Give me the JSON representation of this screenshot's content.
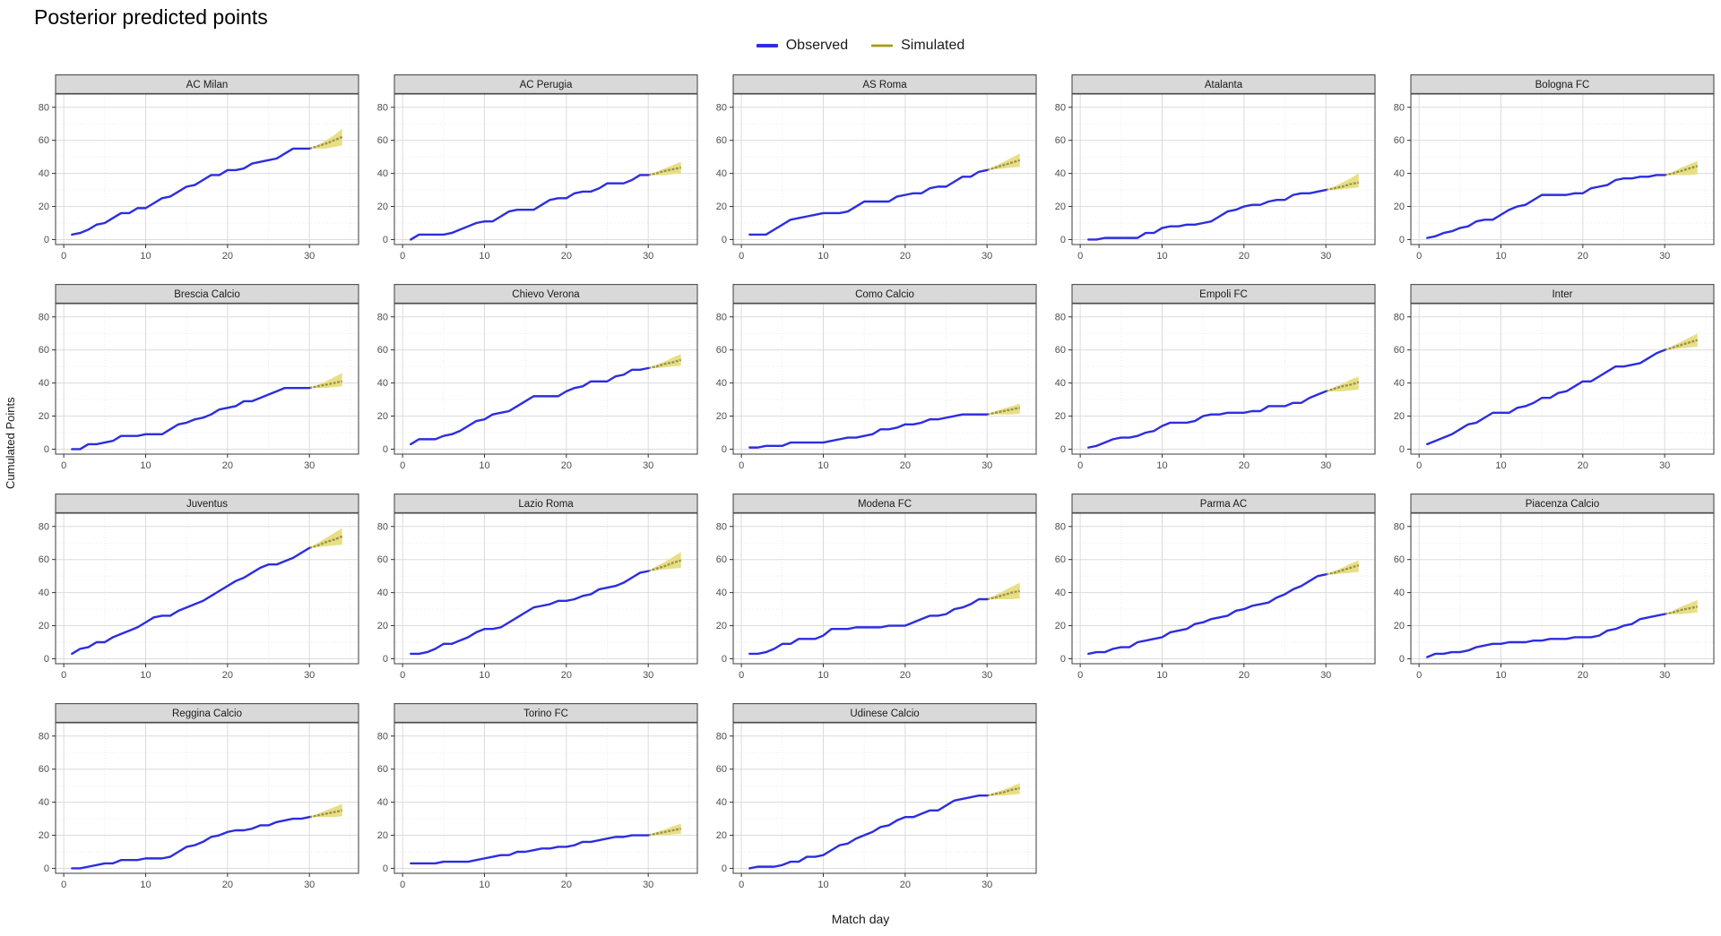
{
  "title": "Posterior predicted points",
  "legend": [
    {
      "label": "Observed",
      "color": "#2D2DE1",
      "band": "#2D2DE1"
    },
    {
      "label": "Simulated",
      "color": "#9D954D",
      "band": "#E7DD7E"
    }
  ],
  "axes": {
    "x_label": "Match day",
    "y_label": "Cumulated Points",
    "x_ticks": [
      0,
      10,
      20,
      30
    ],
    "x_minor": [
      5,
      15,
      25,
      35
    ],
    "y_ticks": [
      0,
      20,
      40,
      60,
      80
    ],
    "y_minor": [
      10,
      30,
      50,
      70
    ],
    "x_domain": [
      -1,
      36
    ],
    "y_domain": [
      -3,
      88
    ]
  },
  "colors": {
    "observed_line": "#2D2DE1",
    "simulated_line": "#9D954D",
    "simulated_band": "#E7DD7E",
    "strip_fill": "#D9D9D9",
    "strip_text": "#1A1A1A",
    "panel_border": "#4D4D4D",
    "grid_major": "#DCDCDC",
    "grid_minor": "#E9E9E9",
    "tick_text": "#4D4D4D"
  },
  "chart_data": {
    "type": "line",
    "title": "Posterior predicted points",
    "xlabel": "Match day",
    "ylabel": "Cumulated Points",
    "x_range": [
      0,
      35
    ],
    "y_range": [
      0,
      85
    ],
    "grid": true,
    "legend_position": "top-center",
    "series_meta": [
      {
        "name": "Observed",
        "style": "solid line",
        "x": "match days 1-30"
      },
      {
        "name": "Simulated",
        "style": "ribbon with median line",
        "x": "match days 30-34"
      }
    ],
    "facets": [
      {
        "team": "AC Milan",
        "observed": [
          3,
          4,
          6,
          9,
          10,
          13,
          16,
          16,
          19,
          19,
          22,
          25,
          26,
          29,
          32,
          33,
          36,
          39,
          39,
          42,
          42,
          43,
          46,
          47,
          48,
          49,
          52,
          55,
          55,
          55
        ],
        "sim_days": [
          30,
          31,
          32,
          33,
          34
        ],
        "sim_lower": [
          55,
          55,
          55,
          56,
          57
        ],
        "sim_mean": [
          55,
          56.5,
          58,
          60,
          62
        ],
        "sim_upper": [
          55,
          57,
          60,
          63,
          67
        ]
      },
      {
        "team": "AC Perugia",
        "observed": [
          0,
          3,
          3,
          3,
          3,
          4,
          6,
          8,
          10,
          11,
          11,
          14,
          17,
          18,
          18,
          18,
          21,
          24,
          25,
          25,
          28,
          29,
          29,
          31,
          34,
          34,
          34,
          36,
          39,
          39
        ],
        "sim_days": [
          30,
          31,
          32,
          33,
          34
        ],
        "sim_lower": [
          39,
          39,
          39,
          39.5,
          40
        ],
        "sim_mean": [
          39,
          40,
          41.5,
          42.5,
          43.5
        ],
        "sim_upper": [
          39,
          41,
          43,
          45,
          47
        ]
      },
      {
        "team": "AS Roma",
        "observed": [
          3,
          3,
          3,
          6,
          9,
          12,
          13,
          14,
          15,
          16,
          16,
          16,
          17,
          20,
          23,
          23,
          23,
          23,
          26,
          27,
          28,
          28,
          31,
          32,
          32,
          35,
          38,
          38,
          41,
          42
        ],
        "sim_days": [
          30,
          31,
          32,
          33,
          34
        ],
        "sim_lower": [
          42,
          42.5,
          43,
          43.5,
          44
        ],
        "sim_mean": [
          42,
          43.5,
          45,
          46.5,
          48
        ],
        "sim_upper": [
          42,
          44.5,
          47,
          49.5,
          52
        ]
      },
      {
        "team": "Atalanta",
        "observed": [
          0,
          0,
          1,
          1,
          1,
          1,
          1,
          4,
          4,
          7,
          8,
          8,
          9,
          9,
          10,
          11,
          14,
          17,
          18,
          20,
          21,
          21,
          23,
          24,
          24,
          27,
          28,
          28,
          29,
          30
        ],
        "sim_days": [
          30,
          31,
          32,
          33,
          34
        ],
        "sim_lower": [
          30,
          30,
          30.5,
          31,
          31.5
        ],
        "sim_mean": [
          30,
          31,
          32,
          33.5,
          34.5
        ],
        "sim_upper": [
          30,
          32,
          34.5,
          37,
          40
        ]
      },
      {
        "team": "Bologna FC",
        "observed": [
          1,
          2,
          4,
          5,
          7,
          8,
          11,
          12,
          12,
          15,
          18,
          20,
          21,
          24,
          27,
          27,
          27,
          27,
          28,
          28,
          31,
          32,
          33,
          36,
          37,
          37,
          38,
          38,
          39,
          39
        ],
        "sim_days": [
          30,
          31,
          32,
          33,
          34
        ],
        "sim_lower": [
          39,
          39,
          39,
          39,
          39.5
        ],
        "sim_mean": [
          39,
          40,
          41.5,
          43,
          44.5
        ],
        "sim_upper": [
          39,
          41,
          43.5,
          45.5,
          47.5
        ]
      },
      {
        "team": "Brescia Calcio",
        "observed": [
          0,
          0,
          3,
          3,
          4,
          5,
          8,
          8,
          8,
          9,
          9,
          9,
          12,
          15,
          16,
          18,
          19,
          21,
          24,
          25,
          26,
          29,
          29,
          31,
          33,
          35,
          37,
          37,
          37,
          37
        ],
        "sim_days": [
          30,
          31,
          32,
          33,
          34
        ],
        "sim_lower": [
          37,
          37,
          37,
          37.5,
          38
        ],
        "sim_mean": [
          37,
          38,
          39,
          40,
          41
        ],
        "sim_upper": [
          37,
          39,
          41,
          43.5,
          46
        ]
      },
      {
        "team": "Chievo Verona",
        "observed": [
          3,
          6,
          6,
          6,
          8,
          9,
          11,
          14,
          17,
          18,
          21,
          22,
          23,
          26,
          29,
          32,
          32,
          32,
          32,
          35,
          37,
          38,
          41,
          41,
          41,
          44,
          45,
          48,
          48,
          49
        ],
        "sim_days": [
          30,
          31,
          32,
          33,
          34
        ],
        "sim_lower": [
          49,
          49,
          49.5,
          50,
          50.5
        ],
        "sim_mean": [
          49,
          50,
          51.5,
          52.5,
          54
        ],
        "sim_upper": [
          49,
          51,
          53,
          55.5,
          57.5
        ]
      },
      {
        "team": "Como Calcio",
        "observed": [
          1,
          1,
          2,
          2,
          2,
          4,
          4,
          4,
          4,
          4,
          5,
          6,
          7,
          7,
          8,
          9,
          12,
          12,
          13,
          15,
          15,
          16,
          18,
          18,
          19,
          20,
          21,
          21,
          21,
          21
        ],
        "sim_days": [
          30,
          31,
          32,
          33,
          34
        ],
        "sim_lower": [
          21,
          21,
          21,
          21,
          21.5
        ],
        "sim_mean": [
          21,
          22,
          23,
          24,
          25
        ],
        "sim_upper": [
          21,
          23,
          24.5,
          26,
          27.5
        ]
      },
      {
        "team": "Empoli FC",
        "observed": [
          1,
          2,
          4,
          6,
          7,
          7,
          8,
          10,
          11,
          14,
          16,
          16,
          16,
          17,
          20,
          21,
          21,
          22,
          22,
          22,
          23,
          23,
          26,
          26,
          26,
          28,
          28,
          31,
          33,
          35
        ],
        "sim_days": [
          30,
          31,
          32,
          33,
          34
        ],
        "sim_lower": [
          35,
          35,
          35,
          35.5,
          36
        ],
        "sim_mean": [
          35,
          36.5,
          38,
          39,
          40.5
        ],
        "sim_upper": [
          35,
          37.5,
          39.5,
          42,
          44
        ]
      },
      {
        "team": "Inter",
        "observed": [
          3,
          5,
          7,
          9,
          12,
          15,
          16,
          19,
          22,
          22,
          22,
          25,
          26,
          28,
          31,
          31,
          34,
          35,
          38,
          41,
          41,
          44,
          47,
          50,
          50,
          51,
          52,
          55,
          58,
          60
        ],
        "sim_days": [
          30,
          31,
          32,
          33,
          34
        ],
        "sim_lower": [
          60,
          60.5,
          61,
          61.5,
          62
        ],
        "sim_mean": [
          60,
          61.5,
          63,
          64.5,
          66
        ],
        "sim_upper": [
          60,
          62.5,
          65,
          67.5,
          70
        ]
      },
      {
        "team": "Juventus",
        "observed": [
          3,
          6,
          7,
          10,
          10,
          13,
          15,
          17,
          19,
          22,
          25,
          26,
          26,
          29,
          31,
          33,
          35,
          38,
          41,
          44,
          47,
          49,
          52,
          55,
          57,
          57,
          59,
          61,
          64,
          67
        ],
        "sim_days": [
          30,
          31,
          32,
          33,
          34
        ],
        "sim_lower": [
          67,
          67.5,
          68,
          68.5,
          69
        ],
        "sim_mean": [
          67,
          68.5,
          70.5,
          72,
          74
        ],
        "sim_upper": [
          67,
          70,
          73,
          76,
          79
        ]
      },
      {
        "team": "Lazio Roma",
        "observed": [
          3,
          3,
          4,
          6,
          9,
          9,
          11,
          13,
          16,
          18,
          18,
          19,
          22,
          25,
          28,
          31,
          32,
          33,
          35,
          35,
          36,
          38,
          39,
          42,
          43,
          44,
          46,
          49,
          52,
          53
        ],
        "sim_days": [
          30,
          31,
          32,
          33,
          34
        ],
        "sim_lower": [
          53,
          53.5,
          54,
          54.5,
          55
        ],
        "sim_mean": [
          53,
          54.5,
          56,
          58,
          59.5
        ],
        "sim_upper": [
          53,
          56,
          58.5,
          61.5,
          64.5
        ]
      },
      {
        "team": "Modena FC",
        "observed": [
          3,
          3,
          4,
          6,
          9,
          9,
          12,
          12,
          12,
          14,
          18,
          18,
          18,
          19,
          19,
          19,
          19,
          20,
          20,
          20,
          22,
          24,
          26,
          26,
          27,
          30,
          31,
          33,
          36,
          36
        ],
        "sim_days": [
          30,
          31,
          32,
          33,
          34
        ],
        "sim_lower": [
          36,
          36,
          36,
          36,
          36.5
        ],
        "sim_mean": [
          36,
          37,
          38.5,
          40,
          41
        ],
        "sim_upper": [
          36,
          38.5,
          41,
          43.5,
          46
        ]
      },
      {
        "team": "Parma AC",
        "observed": [
          3,
          4,
          4,
          6,
          7,
          7,
          10,
          11,
          12,
          13,
          16,
          17,
          18,
          21,
          22,
          24,
          25,
          26,
          29,
          30,
          32,
          33,
          34,
          37,
          39,
          42,
          44,
          47,
          50,
          51
        ],
        "sim_days": [
          30,
          31,
          32,
          33,
          34
        ],
        "sim_lower": [
          51,
          51,
          51.5,
          52,
          52.5
        ],
        "sim_mean": [
          51,
          52,
          53.5,
          55,
          56.5
        ],
        "sim_upper": [
          51,
          53,
          55,
          57.5,
          59.5
        ]
      },
      {
        "team": "Piacenza Calcio",
        "observed": [
          1,
          3,
          3,
          4,
          4,
          5,
          7,
          8,
          9,
          9,
          10,
          10,
          10,
          11,
          11,
          12,
          12,
          12,
          13,
          13,
          13,
          14,
          17,
          18,
          20,
          21,
          24,
          25,
          26,
          27
        ],
        "sim_days": [
          30,
          31,
          32,
          33,
          34
        ],
        "sim_lower": [
          27,
          27,
          27,
          27.5,
          28
        ],
        "sim_mean": [
          27,
          28,
          29.5,
          30.5,
          31.5
        ],
        "sim_upper": [
          27,
          29,
          31.5,
          33.5,
          35.5
        ]
      },
      {
        "team": "Reggina Calcio",
        "observed": [
          0,
          0,
          1,
          2,
          3,
          3,
          5,
          5,
          5,
          6,
          6,
          6,
          7,
          10,
          13,
          14,
          16,
          19,
          20,
          22,
          23,
          23,
          24,
          26,
          26,
          28,
          29,
          30,
          30,
          31
        ],
        "sim_days": [
          30,
          31,
          32,
          33,
          34
        ],
        "sim_lower": [
          31,
          31,
          31,
          31,
          31.5
        ],
        "sim_mean": [
          31,
          32,
          33,
          34,
          35
        ],
        "sim_upper": [
          31,
          33,
          35,
          37,
          39
        ]
      },
      {
        "team": "Torino FC",
        "observed": [
          3,
          3,
          3,
          3,
          4,
          4,
          4,
          4,
          5,
          6,
          7,
          8,
          8,
          10,
          10,
          11,
          12,
          12,
          13,
          13,
          14,
          16,
          16,
          17,
          18,
          19,
          19,
          20,
          20,
          20
        ],
        "sim_days": [
          30,
          31,
          32,
          33,
          34
        ],
        "sim_lower": [
          20,
          20,
          20,
          20.5,
          21
        ],
        "sim_mean": [
          20,
          21,
          22,
          23,
          24
        ],
        "sim_upper": [
          20,
          22,
          23.5,
          25.5,
          27
        ]
      },
      {
        "team": "Udinese Calcio",
        "observed": [
          0,
          1,
          1,
          1,
          2,
          4,
          4,
          7,
          7,
          8,
          11,
          14,
          15,
          18,
          20,
          22,
          25,
          26,
          29,
          31,
          31,
          33,
          35,
          35,
          38,
          41,
          42,
          43,
          44,
          44
        ],
        "sim_days": [
          30,
          31,
          32,
          33,
          34
        ],
        "sim_lower": [
          44,
          44,
          44,
          44.5,
          45
        ],
        "sim_mean": [
          44,
          45,
          46,
          47.5,
          48.5
        ],
        "sim_upper": [
          44,
          46,
          47.5,
          49.5,
          51.5
        ]
      }
    ]
  }
}
